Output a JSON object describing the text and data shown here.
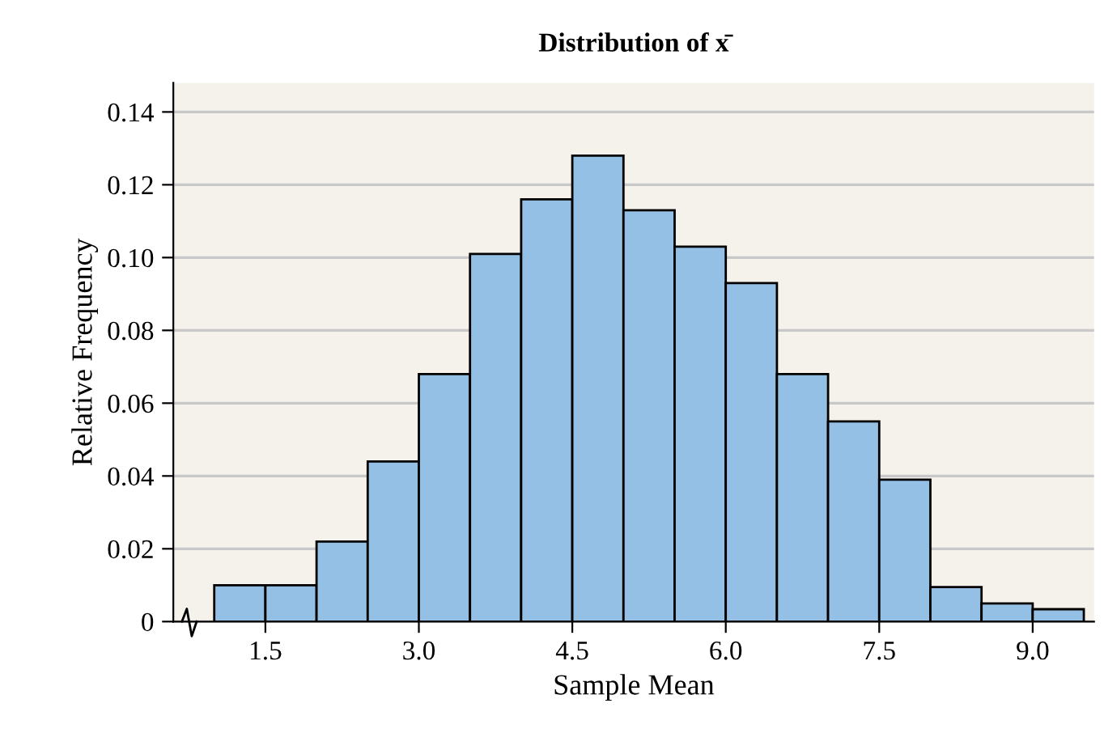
{
  "chart_data": {
    "type": "histogram",
    "title": "Distribution of x̄",
    "xlabel": "Sample Mean",
    "ylabel": "Relative Frequency",
    "bins": [
      1.0,
      1.5,
      2.0,
      2.5,
      3.0,
      3.5,
      4.0,
      4.5,
      5.0,
      5.5,
      6.0,
      6.5,
      7.0,
      7.5,
      8.0,
      8.5,
      9.0,
      9.5
    ],
    "values": [
      0.01,
      0.01,
      0.022,
      0.044,
      0.068,
      0.101,
      0.116,
      0.128,
      0.113,
      0.103,
      0.093,
      0.068,
      0.055,
      0.039,
      0.0095,
      0.005,
      0.0034
    ],
    "color": "#94c0e6",
    "xlim": [
      0.6,
      9.6
    ],
    "xticks": [
      {
        "value": 1.5,
        "label": "1.5"
      },
      {
        "value": 3.0,
        "label": "3.0"
      },
      {
        "value": 4.5,
        "label": "4.5"
      },
      {
        "value": 6.0,
        "label": "6.0"
      },
      {
        "value": 7.5,
        "label": "7.5"
      },
      {
        "value": 9.0,
        "label": "9.0"
      }
    ],
    "ylim": [
      0,
      0.148
    ],
    "yticks": [
      0,
      {
        "value": 0.02,
        "label": "0.02"
      },
      {
        "value": 0.04,
        "label": "0.04"
      },
      {
        "value": 0.06,
        "label": "0.06"
      },
      {
        "value": 0.08,
        "label": "0.08"
      },
      {
        "value": 0.1,
        "label": "0.10"
      },
      {
        "value": 0.12,
        "label": "0.12"
      },
      {
        "value": 0.14,
        "label": "0.14"
      }
    ],
    "grid": "y"
  }
}
